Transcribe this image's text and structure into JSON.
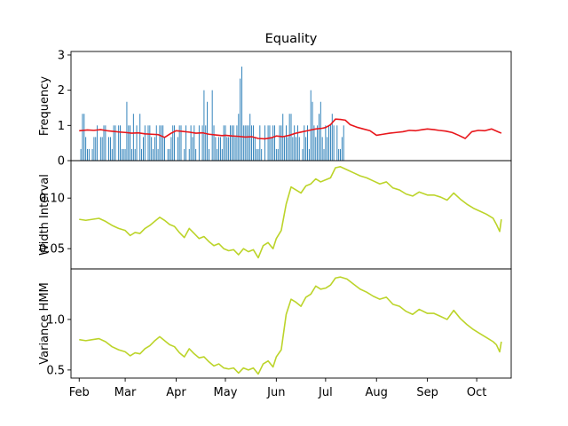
{
  "chart_data": {
    "title": "Equality",
    "x_tick_labels": [
      "Feb",
      "Mar",
      "Apr",
      "May",
      "Jun",
      "Jul",
      "Aug",
      "Sep",
      "Oct"
    ],
    "x_tick_dates": [
      "2023-02-01",
      "2023-03-01",
      "2023-04-01",
      "2023-05-01",
      "2023-06-01",
      "2023-07-01",
      "2023-08-01",
      "2023-09-01",
      "2023-10-01"
    ],
    "xlim": [
      "2023-01-27",
      "2023-10-22"
    ],
    "panels": [
      {
        "type": "bar+line",
        "ylabel": "Frequency",
        "ylim": [
          0,
          3.1
        ],
        "yticks": [
          0,
          1,
          2,
          3
        ],
        "bar_color": "#1f77b4",
        "line_color": "#e8161b",
        "bars": {
          "start_date": "2023-02-02",
          "step_days": 1,
          "values": [
            0.33,
            1.33,
            1.33,
            0.67,
            0.33,
            0.33,
            0,
            0.33,
            0.67,
            0.67,
            1,
            0,
            0.67,
            0.67,
            1,
            1,
            0,
            0.67,
            0.67,
            0.33,
            1,
            1,
            0,
            1,
            1,
            0.33,
            0.33,
            0.33,
            1.67,
            1,
            1,
            0.33,
            1.33,
            0.33,
            1,
            0,
            1.33,
            0.33,
            0.67,
            1,
            0,
            1,
            1,
            0.67,
            0.33,
            0.67,
            1,
            0.33,
            1,
            1,
            1,
            0.67,
            0,
            0.33,
            0.33,
            0.67,
            1,
            1,
            0,
            0.67,
            1,
            1,
            0,
            0.33,
            1,
            0,
            0.33,
            1,
            0.67,
            1,
            0.33,
            0,
            1,
            0,
            1,
            2,
            1,
            1.67,
            0.33,
            0,
            2,
            1,
            0.67,
            0.33,
            0.67,
            0.67,
            0.33,
            1,
            1,
            0.67,
            0.67,
            1,
            1,
            1,
            0.67,
            1,
            1.33,
            2.33,
            2.67,
            1,
            1,
            1,
            1,
            1.33,
            1,
            1,
            0.67,
            0.33,
            0.33,
            1,
            0.33,
            0,
            1,
            0,
            1,
            1,
            0.67,
            1,
            1,
            0.33,
            0.33,
            1,
            1,
            1.33,
            0.67,
            1,
            0.67,
            1.33,
            1.33,
            0.67,
            1,
            0.67,
            1,
            0.67,
            0,
            0.33,
            1,
            0.67,
            1,
            0.33,
            2,
            1.67,
            1,
            0.67,
            1,
            1.33,
            1.67,
            0.67,
            0.33,
            1,
            0.67,
            1,
            1,
            1.33,
            1,
            0,
            1,
            0.33,
            0.33,
            0.67,
            1
          ]
        },
        "line": {
          "x": [
            "2023-02-01",
            "2023-02-06",
            "2023-02-10",
            "2023-02-14",
            "2023-02-18",
            "2023-02-22",
            "2023-02-26",
            "2023-03-01",
            "2023-03-05",
            "2023-03-09",
            "2023-03-13",
            "2023-03-17",
            "2023-03-21",
            "2023-03-25",
            "2023-03-29",
            "2023-04-01",
            "2023-04-05",
            "2023-04-09",
            "2023-04-13",
            "2023-04-17",
            "2023-04-21",
            "2023-04-25",
            "2023-04-29",
            "2023-05-01",
            "2023-05-05",
            "2023-05-09",
            "2023-05-13",
            "2023-05-17",
            "2023-05-21",
            "2023-05-25",
            "2023-05-29",
            "2023-06-01",
            "2023-06-05",
            "2023-06-09",
            "2023-06-13",
            "2023-06-17",
            "2023-06-21",
            "2023-06-25",
            "2023-06-29",
            "2023-07-01",
            "2023-07-04",
            "2023-07-07",
            "2023-07-10",
            "2023-07-13",
            "2023-07-16",
            "2023-07-20",
            "2023-07-24",
            "2023-07-28",
            "2023-08-01",
            "2023-08-05",
            "2023-08-09",
            "2023-08-13",
            "2023-08-17",
            "2023-08-21",
            "2023-08-25",
            "2023-08-29",
            "2023-09-01",
            "2023-09-05",
            "2023-09-08",
            "2023-09-12",
            "2023-09-16",
            "2023-09-20",
            "2023-09-24",
            "2023-09-28",
            "2023-10-02",
            "2023-10-06",
            "2023-10-10",
            "2023-10-14",
            "2023-10-16"
          ],
          "y": [
            0.85,
            0.87,
            0.86,
            0.88,
            0.85,
            0.83,
            0.81,
            0.8,
            0.78,
            0.79,
            0.76,
            0.75,
            0.74,
            0.66,
            0.78,
            0.85,
            0.83,
            0.81,
            0.78,
            0.79,
            0.75,
            0.73,
            0.71,
            0.72,
            0.7,
            0.69,
            0.67,
            0.68,
            0.63,
            0.62,
            0.65,
            0.7,
            0.68,
            0.72,
            0.78,
            0.82,
            0.86,
            0.9,
            0.92,
            0.94,
            1.02,
            1.18,
            1.17,
            1.15,
            1.02,
            0.95,
            0.9,
            0.85,
            0.72,
            0.75,
            0.78,
            0.8,
            0.82,
            0.86,
            0.85,
            0.88,
            0.9,
            0.88,
            0.86,
            0.84,
            0.8,
            0.72,
            0.63,
            0.82,
            0.86,
            0.85,
            0.9,
            0.82,
            0.78
          ]
        }
      },
      {
        "type": "line",
        "ylabel": "Width Interval",
        "ylim": [
          0.03,
          0.137
        ],
        "yticks": [
          0.05,
          0.1
        ],
        "ytick_labels": [
          "0.05",
          "0.10"
        ],
        "line_color": "#bcd42a",
        "x": [
          "2023-02-01",
          "2023-02-05",
          "2023-02-09",
          "2023-02-13",
          "2023-02-17",
          "2023-02-21",
          "2023-02-25",
          "2023-03-01",
          "2023-03-04",
          "2023-03-07",
          "2023-03-10",
          "2023-03-13",
          "2023-03-16",
          "2023-03-19",
          "2023-03-22",
          "2023-03-25",
          "2023-03-28",
          "2023-03-31",
          "2023-04-03",
          "2023-04-06",
          "2023-04-09",
          "2023-04-12",
          "2023-04-15",
          "2023-04-18",
          "2023-04-21",
          "2023-04-24",
          "2023-04-27",
          "2023-04-30",
          "2023-05-03",
          "2023-05-06",
          "2023-05-09",
          "2023-05-12",
          "2023-05-15",
          "2023-05-18",
          "2023-05-21",
          "2023-05-24",
          "2023-05-27",
          "2023-05-30",
          "2023-06-01",
          "2023-06-04",
          "2023-06-07",
          "2023-06-10",
          "2023-06-13",
          "2023-06-16",
          "2023-06-19",
          "2023-06-22",
          "2023-06-25",
          "2023-06-28",
          "2023-07-01",
          "2023-07-04",
          "2023-07-07",
          "2023-07-10",
          "2023-07-14",
          "2023-07-18",
          "2023-07-22",
          "2023-07-26",
          "2023-07-30",
          "2023-08-03",
          "2023-08-07",
          "2023-08-11",
          "2023-08-15",
          "2023-08-19",
          "2023-08-23",
          "2023-08-27",
          "2023-09-01",
          "2023-09-05",
          "2023-09-09",
          "2023-09-13",
          "2023-09-17",
          "2023-09-21",
          "2023-09-25",
          "2023-09-29",
          "2023-10-03",
          "2023-10-07",
          "2023-10-11",
          "2023-10-13",
          "2023-10-15",
          "2023-10-16"
        ],
        "y": [
          0.079,
          0.078,
          0.079,
          0.08,
          0.077,
          0.073,
          0.07,
          0.068,
          0.063,
          0.066,
          0.065,
          0.07,
          0.073,
          0.077,
          0.081,
          0.078,
          0.074,
          0.072,
          0.066,
          0.061,
          0.07,
          0.065,
          0.06,
          0.062,
          0.057,
          0.053,
          0.055,
          0.05,
          0.048,
          0.049,
          0.044,
          0.05,
          0.047,
          0.049,
          0.041,
          0.053,
          0.056,
          0.05,
          0.06,
          0.068,
          0.094,
          0.111,
          0.108,
          0.105,
          0.112,
          0.114,
          0.119,
          0.116,
          0.118,
          0.12,
          0.13,
          0.131,
          0.128,
          0.125,
          0.122,
          0.12,
          0.117,
          0.114,
          0.116,
          0.11,
          0.108,
          0.104,
          0.102,
          0.106,
          0.103,
          0.103,
          0.101,
          0.098,
          0.105,
          0.099,
          0.094,
          0.09,
          0.087,
          0.084,
          0.08,
          0.074,
          0.067,
          0.079
        ]
      },
      {
        "type": "line",
        "ylabel": "Variance HMM",
        "ylim": [
          0.42,
          1.5
        ],
        "yticks": [
          0.5,
          1.0
        ],
        "ytick_labels": [
          "0.5",
          "1.0"
        ],
        "line_color": "#bcd42a",
        "x": [
          "2023-02-01",
          "2023-02-05",
          "2023-02-09",
          "2023-02-13",
          "2023-02-17",
          "2023-02-21",
          "2023-02-25",
          "2023-03-01",
          "2023-03-04",
          "2023-03-07",
          "2023-03-10",
          "2023-03-13",
          "2023-03-16",
          "2023-03-19",
          "2023-03-22",
          "2023-03-25",
          "2023-03-28",
          "2023-03-31",
          "2023-04-03",
          "2023-04-06",
          "2023-04-09",
          "2023-04-12",
          "2023-04-15",
          "2023-04-18",
          "2023-04-21",
          "2023-04-24",
          "2023-04-27",
          "2023-04-30",
          "2023-05-03",
          "2023-05-06",
          "2023-05-09",
          "2023-05-12",
          "2023-05-15",
          "2023-05-18",
          "2023-05-21",
          "2023-05-24",
          "2023-05-27",
          "2023-05-30",
          "2023-06-01",
          "2023-06-04",
          "2023-06-07",
          "2023-06-10",
          "2023-06-13",
          "2023-06-16",
          "2023-06-19",
          "2023-06-22",
          "2023-06-25",
          "2023-06-28",
          "2023-07-01",
          "2023-07-04",
          "2023-07-07",
          "2023-07-10",
          "2023-07-14",
          "2023-07-18",
          "2023-07-22",
          "2023-07-26",
          "2023-07-30",
          "2023-08-03",
          "2023-08-07",
          "2023-08-11",
          "2023-08-15",
          "2023-08-19",
          "2023-08-23",
          "2023-08-27",
          "2023-09-01",
          "2023-09-05",
          "2023-09-09",
          "2023-09-13",
          "2023-09-17",
          "2023-09-21",
          "2023-09-25",
          "2023-09-29",
          "2023-10-03",
          "2023-10-07",
          "2023-10-11",
          "2023-10-13",
          "2023-10-15",
          "2023-10-16"
        ],
        "y": [
          0.8,
          0.79,
          0.8,
          0.81,
          0.78,
          0.73,
          0.7,
          0.68,
          0.64,
          0.67,
          0.66,
          0.71,
          0.74,
          0.79,
          0.83,
          0.79,
          0.75,
          0.73,
          0.67,
          0.63,
          0.71,
          0.66,
          0.62,
          0.63,
          0.58,
          0.54,
          0.56,
          0.52,
          0.51,
          0.52,
          0.47,
          0.52,
          0.5,
          0.52,
          0.46,
          0.56,
          0.59,
          0.53,
          0.63,
          0.7,
          1.05,
          1.2,
          1.17,
          1.13,
          1.22,
          1.25,
          1.33,
          1.3,
          1.31,
          1.34,
          1.41,
          1.42,
          1.4,
          1.35,
          1.3,
          1.27,
          1.23,
          1.2,
          1.22,
          1.15,
          1.13,
          1.08,
          1.05,
          1.1,
          1.06,
          1.06,
          1.03,
          1.0,
          1.09,
          1.01,
          0.95,
          0.9,
          0.86,
          0.82,
          0.78,
          0.75,
          0.68,
          0.78
        ]
      }
    ]
  }
}
